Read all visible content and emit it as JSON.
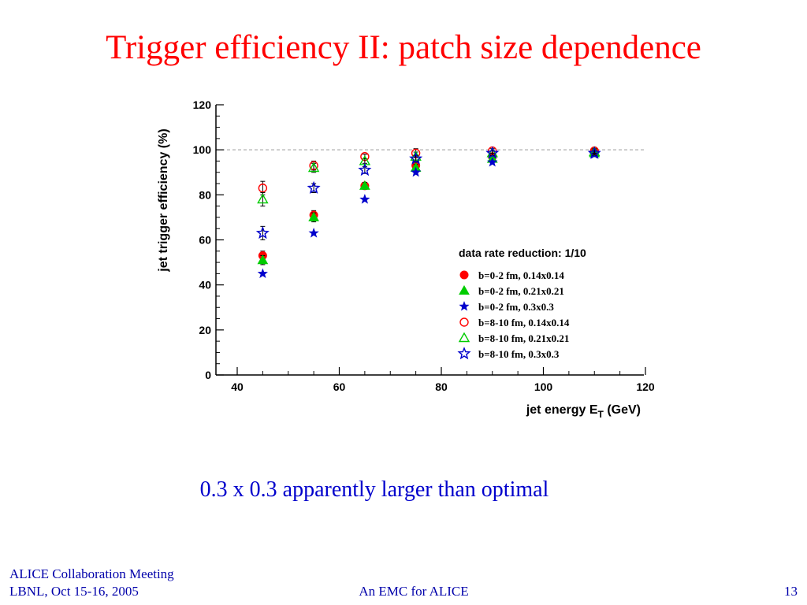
{
  "slide": {
    "title": "Trigger efficiency II: patch size dependence",
    "caption": "0.3 x 0.3 apparently larger than optimal",
    "footer_left_line1": "ALICE Collaboration Meeting",
    "footer_left_line2": "LBNL, Oct 15-16, 2005",
    "footer_center": "An EMC for ALICE",
    "page_number": "13"
  },
  "chart_data": {
    "type": "scatter",
    "xlabel": "jet energy E",
    "xlabel_subscript": "T",
    "xlabel_unit": "(GeV)",
    "ylabel": "jet trigger efficiency (%)",
    "xlim": [
      35,
      120
    ],
    "ylim": [
      0,
      120
    ],
    "x_ticks": [
      40,
      60,
      80,
      100,
      120
    ],
    "y_ticks": [
      0,
      20,
      40,
      60,
      80,
      100,
      120
    ],
    "reference_line_y": 100,
    "grid": false,
    "legend_title": "data rate reduction: 1/10",
    "legend_position": "lower-right",
    "series": [
      {
        "name": "b=0-2 fm, 0.14x0.14",
        "marker": "filled-circle",
        "color": "#ff0000",
        "x": [
          45,
          55,
          65,
          75,
          90,
          110
        ],
        "y": [
          53,
          71,
          84,
          93,
          97,
          99
        ],
        "err": [
          2,
          2,
          1.5,
          1.5,
          1,
          1
        ]
      },
      {
        "name": "b=0-2 fm, 0.21x0.21",
        "marker": "filled-triangle",
        "color": "#00cc00",
        "x": [
          45,
          55,
          65,
          75,
          90,
          110
        ],
        "y": [
          51,
          70,
          84,
          92,
          96,
          98.5
        ],
        "err": [
          2,
          2,
          1.5,
          1.5,
          1,
          1
        ]
      },
      {
        "name": "b=0-2 fm, 0.3x0.3",
        "marker": "filled-star",
        "color": "#0000cc",
        "x": [
          45,
          55,
          65,
          75,
          90,
          110
        ],
        "y": [
          45,
          63,
          78,
          90,
          94.5,
          98
        ],
        "err": [
          0,
          0,
          0,
          0,
          0,
          0
        ]
      },
      {
        "name": "b=8-10 fm, 0.14x0.14",
        "marker": "open-circle",
        "color": "#ff0000",
        "x": [
          45,
          55,
          65,
          75,
          90,
          110
        ],
        "y": [
          83,
          93,
          97,
          98.5,
          99.5,
          99.5
        ],
        "err": [
          3,
          2,
          1,
          2,
          1,
          1
        ]
      },
      {
        "name": "b=8-10 fm, 0.21x0.21",
        "marker": "open-triangle",
        "color": "#00cc00",
        "x": [
          45,
          55,
          65,
          75,
          90,
          110
        ],
        "y": [
          78,
          92,
          95,
          97,
          98.5,
          99
        ],
        "err": [
          3,
          2,
          1,
          2,
          1,
          1
        ]
      },
      {
        "name": "b=8-10 fm, 0.3x0.3",
        "marker": "open-star",
        "color": "#0000cc",
        "x": [
          45,
          55,
          65,
          75,
          90,
          110
        ],
        "y": [
          63,
          83,
          91,
          96,
          98.5,
          98.5
        ],
        "err": [
          3,
          2,
          1.5,
          1.5,
          1,
          1
        ]
      }
    ]
  }
}
